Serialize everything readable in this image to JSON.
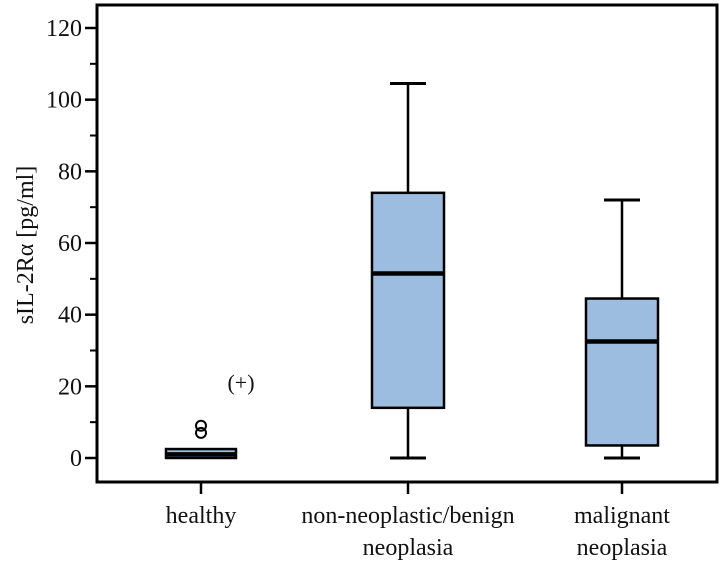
{
  "chart_data": {
    "type": "box",
    "title": "",
    "xlabel": "",
    "ylabel": "sIL-2Rα [pg/ml]",
    "ylim": [
      -8,
      126
    ],
    "yticks": [
      0,
      20,
      40,
      60,
      80,
      100,
      120
    ],
    "yminor_ticks": [
      10,
      30,
      50,
      70,
      90,
      110
    ],
    "grid": false,
    "box_color": "#9dbde0",
    "categories": [
      {
        "label_lines": [
          "healthy"
        ],
        "whisker_low": 0,
        "q1": 0,
        "median": 1,
        "q3": 2.5,
        "whisker_high": 2.5,
        "outliers": [
          7,
          9
        ],
        "annotation": "(+)"
      },
      {
        "label_lines": [
          "non-neoplastic/benign",
          "neoplasia"
        ],
        "whisker_low": 0,
        "q1": 14,
        "median": 51.5,
        "q3": 74,
        "whisker_high": 104.5,
        "outliers": [],
        "annotation": ""
      },
      {
        "label_lines": [
          "malignant",
          "neoplasia"
        ],
        "whisker_low": 0,
        "q1": 3.5,
        "median": 32.5,
        "q3": 44.5,
        "whisker_high": 72,
        "outliers": [],
        "annotation": ""
      }
    ]
  }
}
